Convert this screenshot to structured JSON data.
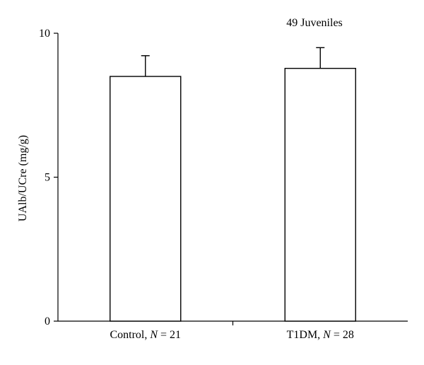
{
  "chart_data": {
    "type": "bar",
    "title": "49 Juveniles",
    "ylabel": "UAlb/UCre (mg/g)",
    "xlabel": "",
    "ylim": [
      0,
      10
    ],
    "yticks": [
      0,
      5,
      10
    ],
    "grid": false,
    "categories": [
      {
        "name": "Control",
        "n_symbol": "N",
        "n_text": " = 21"
      },
      {
        "name": "T1DM",
        "n_symbol": "N",
        "n_text": " = 28"
      }
    ],
    "values": [
      8.5,
      8.78
    ],
    "error_upper": [
      0.72,
      0.72
    ]
  }
}
